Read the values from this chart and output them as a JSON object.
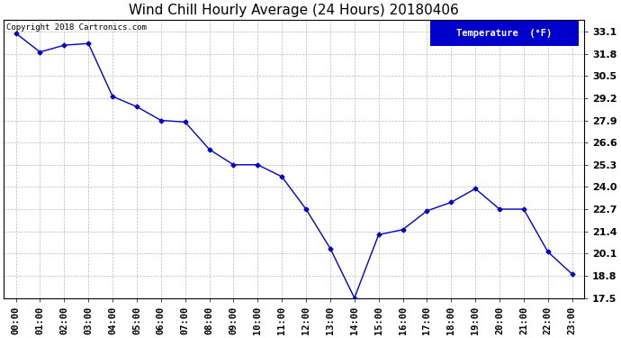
{
  "title": "Wind Chill Hourly Average (24 Hours) 20180406",
  "hours": [
    0,
    1,
    2,
    3,
    4,
    5,
    6,
    7,
    8,
    9,
    10,
    11,
    12,
    13,
    14,
    15,
    16,
    17,
    18,
    19,
    20,
    21,
    22,
    23
  ],
  "hour_labels": [
    "00:00",
    "01:00",
    "02:00",
    "03:00",
    "04:00",
    "05:00",
    "06:00",
    "07:00",
    "08:00",
    "09:00",
    "10:00",
    "11:00",
    "12:00",
    "13:00",
    "14:00",
    "15:00",
    "16:00",
    "17:00",
    "18:00",
    "19:00",
    "20:00",
    "21:00",
    "22:00",
    "23:00"
  ],
  "values": [
    33.0,
    31.9,
    32.3,
    32.4,
    29.3,
    28.7,
    27.9,
    27.8,
    26.2,
    25.3,
    25.3,
    24.6,
    22.7,
    20.4,
    17.5,
    21.2,
    21.5,
    22.6,
    23.1,
    23.9,
    22.7,
    22.7,
    20.2,
    18.9
  ],
  "yticks": [
    17.5,
    18.8,
    20.1,
    21.4,
    22.7,
    24.0,
    25.3,
    26.6,
    27.9,
    29.2,
    30.5,
    31.8,
    33.1
  ],
  "ylim_min": 17.5,
  "ylim_max": 33.8,
  "line_color": "#0000cc",
  "marker_color": "#0000cc",
  "bg_color": "#ffffff",
  "plot_bg_color": "#ffffff",
  "grid_color": "#bbbbbb",
  "legend_label": "Temperature  (°F)",
  "legend_bg": "#0000cc",
  "legend_text_color": "#ffffff",
  "copyright_text": "Copyright 2018 Cartronics.com",
  "title_fontsize": 11,
  "axis_fontsize": 7.5,
  "copyright_fontsize": 6.5,
  "ytick_fontsize": 8
}
